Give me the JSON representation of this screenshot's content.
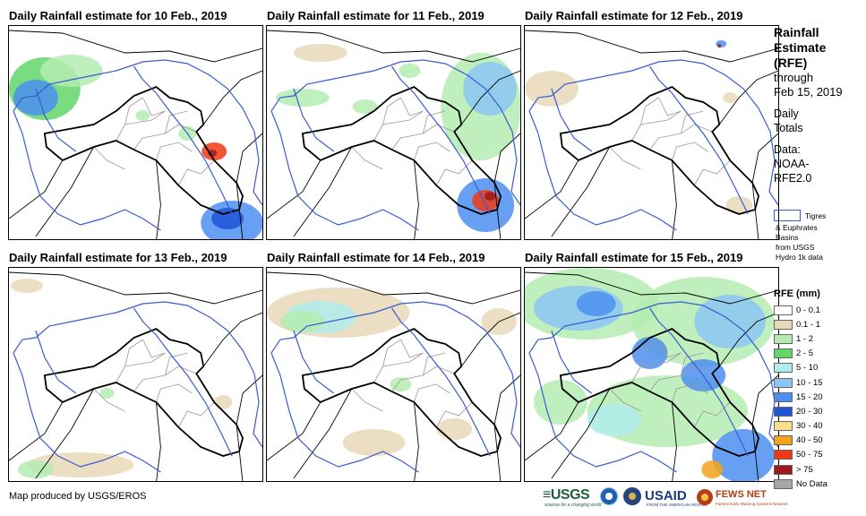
{
  "panels": [
    {
      "title": "Daily Rainfall estimate for 10 Feb., 2019"
    },
    {
      "title": "Daily Rainfall estimate for 11 Feb., 2019"
    },
    {
      "title": "Daily Rainfall estimate for 12 Feb., 2019"
    },
    {
      "title": "Daily Rainfall estimate for 13 Feb., 2019"
    },
    {
      "title": "Daily Rainfall estimate for 14 Feb., 2019"
    },
    {
      "title": "Daily Rainfall estimate for 15 Feb., 2019"
    }
  ],
  "sidebar": {
    "title_line1": "Rainfall",
    "title_line2": "Estimate",
    "title_line3": "(RFE)",
    "through": "through",
    "date": "Feb 15, 2019",
    "daily1": "Daily",
    "daily2": "Totals",
    "data1": "Data:",
    "data2": "NOAA-",
    "data3": "RFE2.0"
  },
  "basin_legend": {
    "line1": "Tigres",
    "line2": "& Euphrates",
    "line3": "Basins",
    "line4": "from USGS",
    "line5": "Hydro 1k data",
    "color": "#3a5bd1"
  },
  "rfe_legend": {
    "title": "RFE (mm)",
    "items": [
      {
        "label": "0 - 0.1",
        "color": "#ffffff"
      },
      {
        "label": "0.1 - 1",
        "color": "#e8d8b8"
      },
      {
        "label": "1 - 2",
        "color": "#b4ecb0"
      },
      {
        "label": "2 - 5",
        "color": "#63d66a"
      },
      {
        "label": "5 - 10",
        "color": "#b0ecec"
      },
      {
        "label": "10 - 15",
        "color": "#8cc6f4"
      },
      {
        "label": "15 - 20",
        "color": "#4c8ff0"
      },
      {
        "label": "20 - 30",
        "color": "#1e54d6"
      },
      {
        "label": "30 - 40",
        "color": "#f7e08a"
      },
      {
        "label": "40 - 50",
        "color": "#f4a21c"
      },
      {
        "label": "50 - 75",
        "color": "#ee3a14"
      },
      {
        "label": "> 75",
        "color": "#9c1a1a"
      },
      {
        "label": "No Data",
        "color": "#a6a6a6"
      }
    ]
  },
  "footer": {
    "credit": "Map produced by USGS/EROS",
    "usgs": "≡USGS",
    "usgs_tag": "science for a changing world",
    "usaid": "USAID",
    "usaid_tag": "FROM THE AMERICAN PEOPLE",
    "fews": "FEWS NET",
    "fews_tag": "Famine Early Warning Systems Network"
  }
}
